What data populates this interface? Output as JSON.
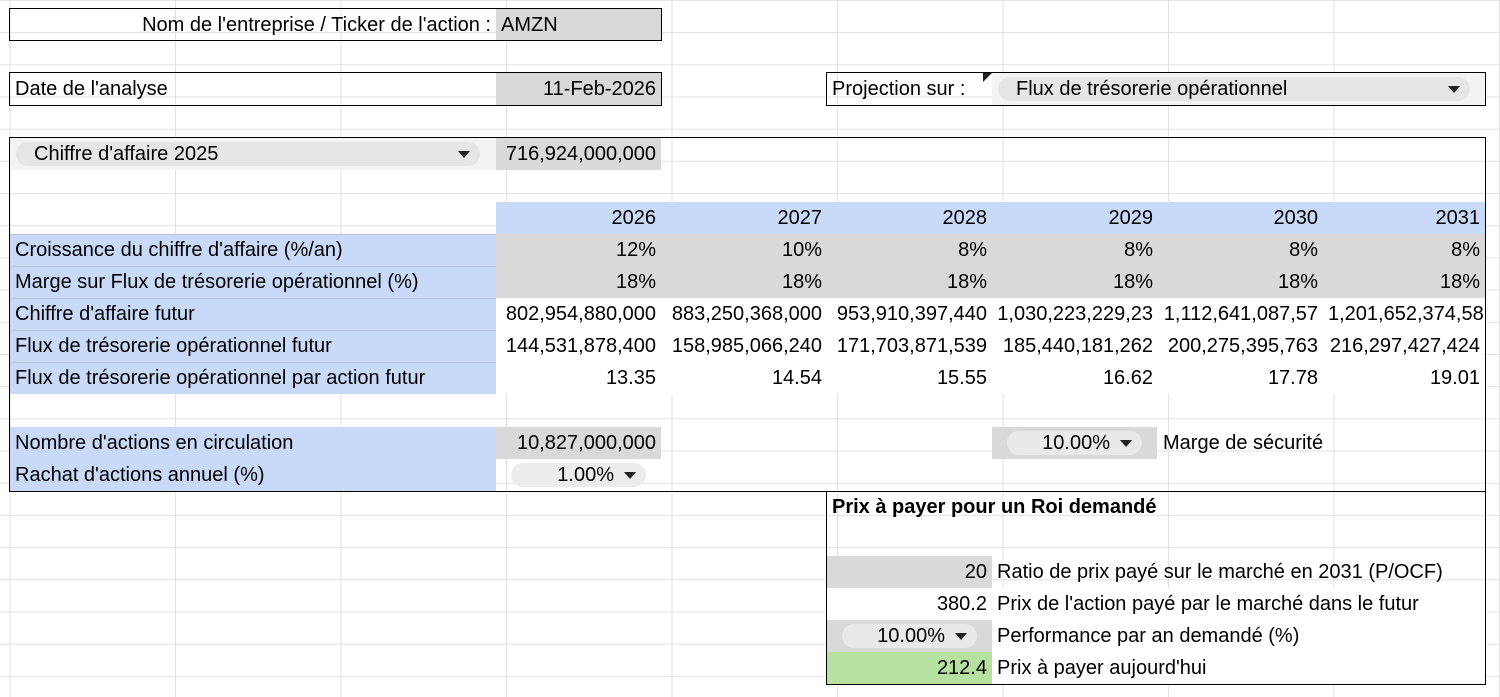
{
  "company": {
    "label": "Nom de l'entreprise / Ticker de l'action :",
    "value": "AMZN"
  },
  "analysis_date": {
    "label": "Date de l'analyse",
    "value": "11-Feb-2026"
  },
  "projection": {
    "label": "Projection sur :",
    "selected": "Flux de trésorerie opérationnel"
  },
  "revenue": {
    "selected": "Chiffre d'affaire 2025",
    "value": "716,924,000,000"
  },
  "table": {
    "years": [
      "2026",
      "2027",
      "2028",
      "2029",
      "2030",
      "2031"
    ],
    "rows": [
      {
        "label": "Croissance du chiffre d'affaire (%/an)",
        "values": [
          "12%",
          "10%",
          "8%",
          "8%",
          "8%",
          "8%"
        ]
      },
      {
        "label": "Marge sur Flux de trésorerie opérationnel (%)",
        "values": [
          "18%",
          "18%",
          "18%",
          "18%",
          "18%",
          "18%"
        ]
      },
      {
        "label": "Chiffre d'affaire futur",
        "values": [
          "802,954,880,000",
          "883,250,368,000",
          "953,910,397,440",
          "1,030,223,229,23",
          "1,112,641,087,57",
          "1,201,652,374,58"
        ]
      },
      {
        "label": "Flux de trésorerie opérationnel futur",
        "values": [
          "144,531,878,400",
          "158,985,066,240",
          "171,703,871,539",
          "185,440,181,262",
          "200,275,395,763",
          "216,297,427,424"
        ]
      },
      {
        "label": "Flux de trésorerie opérationnel par action futur",
        "values": [
          "13.35",
          "14.54",
          "15.55",
          "16.62",
          "17.78",
          "19.01"
        ]
      }
    ]
  },
  "shares": {
    "label": "Nombre d'actions en circulation",
    "value": "10,827,000,000"
  },
  "buyback": {
    "label": "Rachat d'actions annuel (%)",
    "selected": "1.00%"
  },
  "safety_margin": {
    "selected": "10.00%",
    "label": "Marge de sécurité"
  },
  "roi": {
    "title": "Prix à payer pour un Roi demandé",
    "ratio_value": "20",
    "ratio_label": "Ratio de prix payé sur le marché en 2031 (P/OCF)",
    "future_price_value": "380.2",
    "future_price_label": "Prix de l'action payé par le marché dans le futur",
    "performance_selected": "10.00%",
    "performance_label": "Performance par an demandé (%)",
    "today_price_value": "212.4",
    "today_price_label": "Prix à payer aujourd'hui"
  },
  "colors": {
    "header_blue": "#c9daf8",
    "input_gray": "#d9d9d9",
    "result_green": "#b7e1a1"
  }
}
